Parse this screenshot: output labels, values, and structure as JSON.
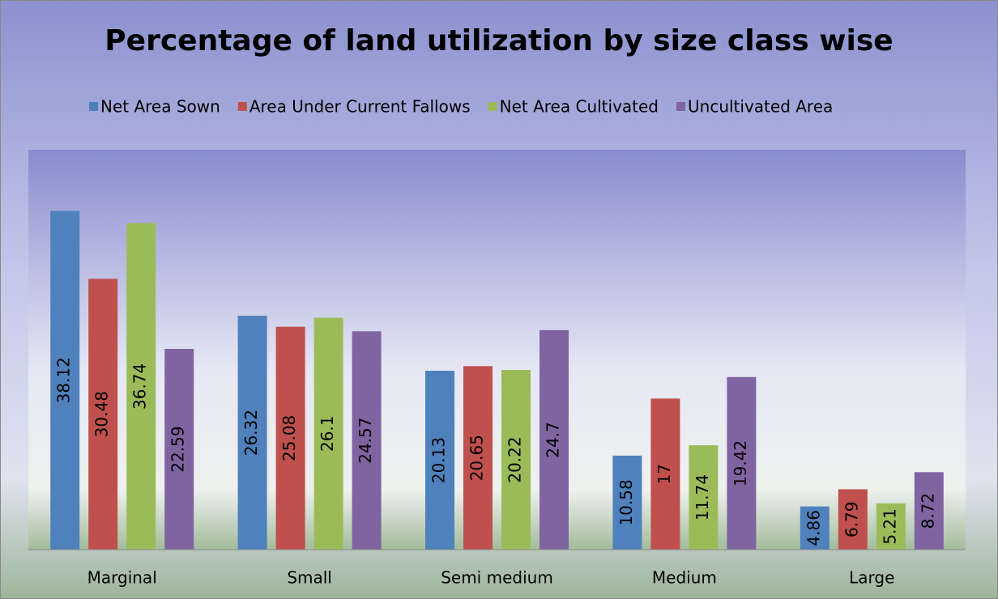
{
  "chart_data": {
    "type": "bar",
    "title": "Percentage of land utilization by size class wise",
    "categories": [
      "Marginal",
      "Small",
      "Semi medium",
      "Medium",
      "Large"
    ],
    "series": [
      {
        "name": "Net Area Sown",
        "color": "#4f81bd",
        "values": [
          38.12,
          26.32,
          20.13,
          10.58,
          4.86
        ]
      },
      {
        "name": "Area Under Current Fallows",
        "color": "#c0504d",
        "values": [
          30.48,
          25.08,
          20.65,
          17,
          6.79
        ]
      },
      {
        "name": "Net Area Cultivated",
        "color": "#9bbb59",
        "values": [
          36.74,
          26.1,
          20.22,
          11.74,
          5.21
        ]
      },
      {
        "name": "Uncultivated Area",
        "color": "#8064a2",
        "values": [
          22.59,
          24.57,
          24.7,
          19.42,
          8.72
        ]
      }
    ],
    "ylim": [
      0,
      45
    ],
    "legend": "top",
    "data_labels": true
  }
}
